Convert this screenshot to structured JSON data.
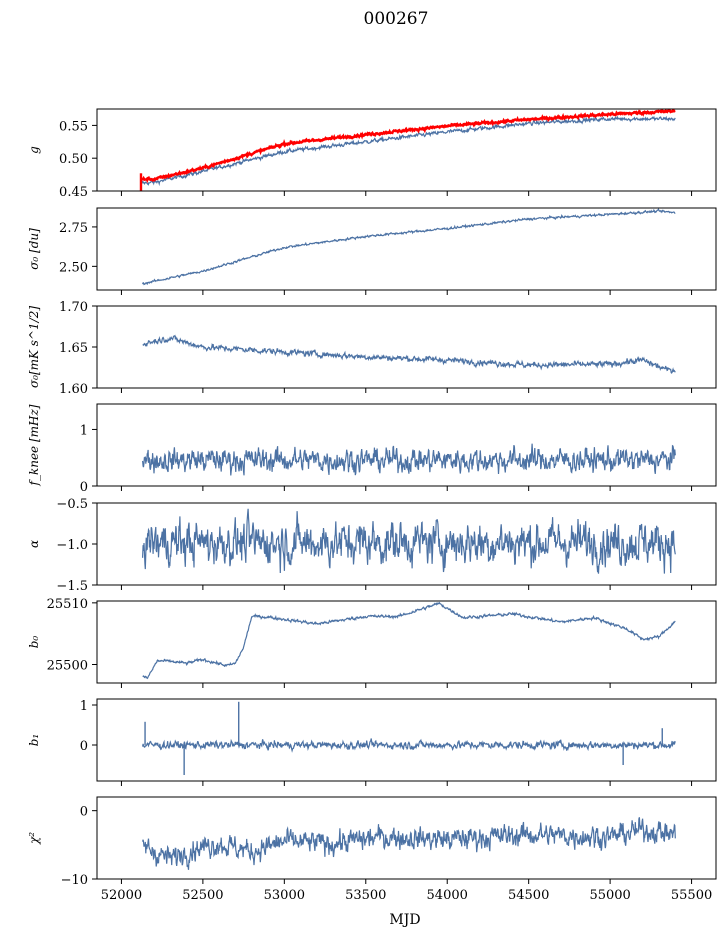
{
  "figure": {
    "title": "000267",
    "xlabel": "MJD",
    "xlim": [
      51850,
      55650
    ],
    "xticks": [
      52000,
      52500,
      53000,
      53500,
      54000,
      54500,
      55000,
      55500
    ],
    "xtick_labels": [
      "52000",
      "52500",
      "53000",
      "53500",
      "54000",
      "54500",
      "55000",
      "55500"
    ],
    "colors": {
      "line": "#4c72a4",
      "highlight": "#ff0000",
      "axis": "#000000"
    }
  },
  "chart_data": [
    {
      "id": "g",
      "type": "line",
      "ylabel": "g",
      "ylim": [
        0.45,
        0.575
      ],
      "yticks": [
        0.45,
        0.5,
        0.55
      ],
      "ytick_labels": [
        "0.45",
        "0.50",
        "0.55"
      ],
      "series": [
        {
          "name": "g",
          "color": "#4c72a4",
          "noise": 0.0012,
          "x": [
            52120,
            52200,
            52500,
            53000,
            53500,
            54000,
            54500,
            55000,
            55400
          ],
          "y": [
            0.462,
            0.463,
            0.48,
            0.51,
            0.525,
            0.54,
            0.553,
            0.56,
            0.56
          ]
        },
        {
          "name": "g (fit)",
          "color": "#ff0000",
          "noise": 0.0008,
          "x": [
            52120,
            52200,
            52500,
            53000,
            53500,
            54000,
            54500,
            55000,
            55400
          ],
          "y": [
            0.468,
            0.468,
            0.485,
            0.522,
            0.536,
            0.549,
            0.559,
            0.567,
            0.572
          ]
        }
      ],
      "spike": {
        "x": 52120,
        "ymin": 0.45,
        "ymax": 0.477,
        "color": "#ff0000"
      }
    },
    {
      "id": "sigma0_du",
      "type": "line",
      "ylabel": "σ₀ [du]",
      "ylim": [
        2.35,
        2.87
      ],
      "yticks": [
        2.5,
        2.75
      ],
      "ytick_labels": [
        "2.50",
        "2.75"
      ],
      "series": [
        {
          "name": "sigma0 du",
          "color": "#4c72a4",
          "noise": 0.003,
          "x": [
            52130,
            52500,
            53000,
            53500,
            54000,
            54500,
            55000,
            55300,
            55400
          ],
          "y": [
            2.39,
            2.47,
            2.62,
            2.69,
            2.74,
            2.8,
            2.83,
            2.85,
            2.84
          ]
        }
      ]
    },
    {
      "id": "sigma0_mK",
      "type": "line",
      "ylabel": "σ₀[mK s^1/2]",
      "ylim": [
        1.6,
        1.7
      ],
      "yticks": [
        1.6,
        1.65,
        1.7
      ],
      "ytick_labels": [
        "1.60",
        "1.65",
        "1.70"
      ],
      "series": [
        {
          "name": "sigma0 mK",
          "color": "#4c72a4",
          "noise": 0.0015,
          "x": [
            52130,
            52300,
            52500,
            53000,
            53500,
            54000,
            54500,
            55000,
            55200,
            55350,
            55400
          ],
          "y": [
            1.654,
            1.661,
            1.65,
            1.644,
            1.638,
            1.634,
            1.628,
            1.629,
            1.634,
            1.622,
            1.622
          ]
        }
      ]
    },
    {
      "id": "fknee",
      "type": "line",
      "ylabel": "f_knee [mHz]",
      "ylim": [
        0,
        1.45
      ],
      "yticks": [
        0,
        1
      ],
      "ytick_labels": [
        "0",
        "1"
      ],
      "series": [
        {
          "name": "f_knee",
          "color": "#4c72a4",
          "noise": 0.09,
          "x": [
            52130,
            55400
          ],
          "y": [
            0.46,
            0.46
          ]
        }
      ]
    },
    {
      "id": "alpha",
      "type": "line",
      "ylabel": "α",
      "ylim": [
        -1.5,
        -0.5
      ],
      "yticks": [
        -1.5,
        -1.0,
        -0.5
      ],
      "ytick_labels": [
        "−1.5",
        "−1.0",
        "−0.5"
      ],
      "series": [
        {
          "name": "alpha",
          "color": "#4c72a4",
          "noise": 0.11,
          "x": [
            52130,
            55400
          ],
          "y": [
            -0.98,
            -0.98
          ]
        }
      ]
    },
    {
      "id": "b0",
      "type": "line",
      "ylabel": "b₀",
      "ylim": [
        25497,
        25510.3
      ],
      "yticks": [
        25500,
        25510
      ],
      "ytick_labels": [
        "25500",
        "25510"
      ],
      "series": [
        {
          "name": "b0",
          "color": "#4c72a4",
          "noise": 0.1,
          "x": [
            52130,
            52160,
            52220,
            52300,
            52400,
            52500,
            52650,
            52700,
            52750,
            52800,
            52900,
            53200,
            53500,
            53700,
            53950,
            54100,
            54400,
            54700,
            54900,
            55100,
            55200,
            55300,
            55400
          ],
          "y": [
            25498,
            25497.8,
            25500.6,
            25500.5,
            25500.2,
            25500.8,
            25499.8,
            25500.2,
            25502.8,
            25507.8,
            25507.7,
            25506.6,
            25507.8,
            25507.8,
            25509.9,
            25507.6,
            25508.2,
            25506.9,
            25507.6,
            25505.8,
            25504.1,
            25504.5,
            25507
          ]
        }
      ]
    },
    {
      "id": "b1",
      "type": "line",
      "ylabel": "b₁",
      "ylim": [
        -0.9,
        1.15
      ],
      "yticks": [
        0,
        1
      ],
      "ytick_labels": [
        "0",
        "1"
      ],
      "series": [
        {
          "name": "b1",
          "color": "#4c72a4",
          "noise": 0.04,
          "x": [
            52130,
            55400
          ],
          "y": [
            0.0,
            0.0
          ]
        }
      ],
      "spikes": [
        {
          "x": 52145,
          "y": 0.58
        },
        {
          "x": 52385,
          "y": -0.75
        },
        {
          "x": 52720,
          "y": 1.08
        },
        {
          "x": 55080,
          "y": -0.5
        },
        {
          "x": 55320,
          "y": 0.42
        }
      ]
    },
    {
      "id": "chi2",
      "type": "line",
      "ylabel": "χ²",
      "ylim": [
        -10,
        2
      ],
      "yticks": [
        -10,
        0
      ],
      "ytick_labels": [
        "−10",
        "0"
      ],
      "series": [
        {
          "name": "chi2",
          "color": "#4c72a4",
          "noise": 0.7,
          "x": [
            52130,
            52200,
            52300,
            52450,
            52600,
            52800,
            53000,
            53300,
            53600,
            54000,
            54500,
            55000,
            55200,
            55300,
            55400
          ],
          "y": [
            -5,
            -6,
            -7,
            -5.5,
            -4.8,
            -6,
            -4.5,
            -4.8,
            -3.8,
            -4.2,
            -3.5,
            -3.8,
            -2.8,
            -3.0,
            -3.5
          ]
        }
      ]
    }
  ]
}
